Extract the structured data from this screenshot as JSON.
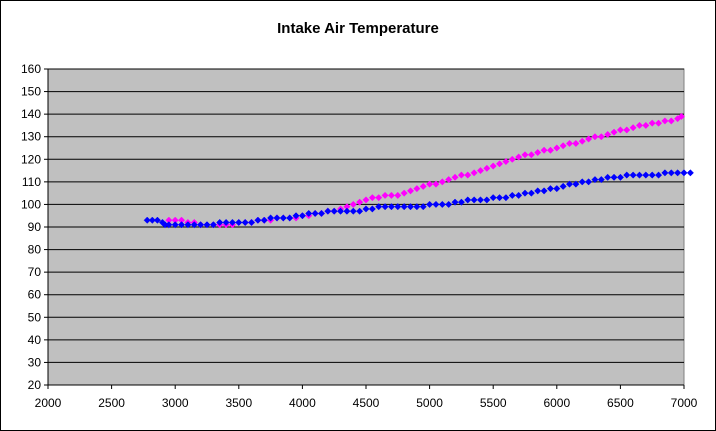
{
  "chart_data": {
    "type": "scatter",
    "title": "Intake Air Temperature",
    "xlabel": "",
    "ylabel": "",
    "xlim": [
      2000,
      7000
    ],
    "ylim": [
      20,
      160
    ],
    "x_ticks": [
      "2000",
      "2500",
      "3000",
      "3500",
      "4000",
      "4500",
      "5000",
      "5500",
      "6000",
      "6500",
      "7000"
    ],
    "y_ticks": [
      "20",
      "30",
      "40",
      "50",
      "60",
      "70",
      "80",
      "90",
      "100",
      "110",
      "120",
      "130",
      "140",
      "150",
      "160"
    ],
    "grid": "horizontal",
    "legend": "none",
    "plot_background": "#c0c0c0",
    "series": [
      {
        "color": "#ff00ff",
        "marker": "diamond",
        "points": [
          [
            2950,
            93
          ],
          [
            3000,
            93
          ],
          [
            3050,
            93
          ],
          [
            3100,
            92
          ],
          [
            3150,
            92
          ],
          [
            3200,
            91
          ],
          [
            3250,
            91
          ],
          [
            3300,
            91
          ],
          [
            3350,
            91
          ],
          [
            3400,
            91
          ],
          [
            3450,
            91
          ],
          [
            3500,
            92
          ],
          [
            3550,
            92
          ],
          [
            3600,
            92
          ],
          [
            3650,
            93
          ],
          [
            3700,
            93
          ],
          [
            3750,
            93
          ],
          [
            3800,
            94
          ],
          [
            3850,
            94
          ],
          [
            3900,
            94
          ],
          [
            3950,
            94
          ],
          [
            4000,
            95
          ],
          [
            4050,
            95
          ],
          [
            4100,
            96
          ],
          [
            4150,
            96
          ],
          [
            4200,
            97
          ],
          [
            4250,
            97
          ],
          [
            4300,
            98
          ],
          [
            4350,
            99
          ],
          [
            4400,
            100
          ],
          [
            4450,
            101
          ],
          [
            4500,
            102
          ],
          [
            4550,
            103
          ],
          [
            4600,
            103
          ],
          [
            4650,
            104
          ],
          [
            4700,
            104
          ],
          [
            4750,
            104
          ],
          [
            4800,
            105
          ],
          [
            4850,
            106
          ],
          [
            4900,
            107
          ],
          [
            4950,
            108
          ],
          [
            5000,
            109
          ],
          [
            5050,
            109
          ],
          [
            5100,
            110
          ],
          [
            5150,
            111
          ],
          [
            5200,
            112
          ],
          [
            5250,
            113
          ],
          [
            5300,
            113
          ],
          [
            5350,
            114
          ],
          [
            5400,
            115
          ],
          [
            5450,
            116
          ],
          [
            5500,
            117
          ],
          [
            5550,
            118
          ],
          [
            5600,
            119
          ],
          [
            5650,
            120
          ],
          [
            5700,
            121
          ],
          [
            5750,
            122
          ],
          [
            5800,
            122
          ],
          [
            5850,
            123
          ],
          [
            5900,
            124
          ],
          [
            5950,
            124
          ],
          [
            6000,
            125
          ],
          [
            6050,
            126
          ],
          [
            6100,
            127
          ],
          [
            6150,
            127
          ],
          [
            6200,
            128
          ],
          [
            6250,
            129
          ],
          [
            6300,
            130
          ],
          [
            6350,
            130
          ],
          [
            6400,
            131
          ],
          [
            6450,
            132
          ],
          [
            6500,
            133
          ],
          [
            6550,
            133
          ],
          [
            6600,
            134
          ],
          [
            6650,
            135
          ],
          [
            6700,
            135
          ],
          [
            6750,
            136
          ],
          [
            6800,
            136
          ],
          [
            6850,
            137
          ],
          [
            6900,
            137
          ],
          [
            6950,
            138
          ],
          [
            6980,
            139
          ]
        ]
      },
      {
        "color": "#0000ff",
        "marker": "diamond",
        "points": [
          [
            2780,
            93
          ],
          [
            2820,
            93
          ],
          [
            2860,
            93
          ],
          [
            2900,
            92
          ],
          [
            2920,
            91
          ],
          [
            2950,
            91
          ],
          [
            3000,
            91
          ],
          [
            3050,
            91
          ],
          [
            3100,
            91
          ],
          [
            3150,
            91
          ],
          [
            3200,
            91
          ],
          [
            3250,
            91
          ],
          [
            3300,
            91
          ],
          [
            3350,
            92
          ],
          [
            3400,
            92
          ],
          [
            3450,
            92
          ],
          [
            3500,
            92
          ],
          [
            3550,
            92
          ],
          [
            3600,
            92
          ],
          [
            3650,
            93
          ],
          [
            3700,
            93
          ],
          [
            3750,
            94
          ],
          [
            3800,
            94
          ],
          [
            3850,
            94
          ],
          [
            3900,
            94
          ],
          [
            3950,
            95
          ],
          [
            4000,
            95
          ],
          [
            4050,
            96
          ],
          [
            4100,
            96
          ],
          [
            4150,
            96
          ],
          [
            4200,
            97
          ],
          [
            4250,
            97
          ],
          [
            4300,
            97
          ],
          [
            4350,
            97
          ],
          [
            4400,
            97
          ],
          [
            4450,
            97
          ],
          [
            4500,
            98
          ],
          [
            4550,
            98
          ],
          [
            4600,
            99
          ],
          [
            4650,
            99
          ],
          [
            4700,
            99
          ],
          [
            4750,
            99
          ],
          [
            4800,
            99
          ],
          [
            4850,
            99
          ],
          [
            4900,
            99
          ],
          [
            4950,
            99
          ],
          [
            5000,
            100
          ],
          [
            5050,
            100
          ],
          [
            5100,
            100
          ],
          [
            5150,
            100
          ],
          [
            5200,
            101
          ],
          [
            5250,
            101
          ],
          [
            5300,
            102
          ],
          [
            5350,
            102
          ],
          [
            5400,
            102
          ],
          [
            5450,
            102
          ],
          [
            5500,
            103
          ],
          [
            5550,
            103
          ],
          [
            5600,
            103
          ],
          [
            5650,
            104
          ],
          [
            5700,
            104
          ],
          [
            5750,
            105
          ],
          [
            5800,
            105
          ],
          [
            5850,
            106
          ],
          [
            5900,
            106
          ],
          [
            5950,
            107
          ],
          [
            6000,
            107
          ],
          [
            6050,
            108
          ],
          [
            6100,
            109
          ],
          [
            6150,
            109
          ],
          [
            6200,
            110
          ],
          [
            6250,
            110
          ],
          [
            6300,
            111
          ],
          [
            6350,
            111
          ],
          [
            6400,
            112
          ],
          [
            6450,
            112
          ],
          [
            6500,
            112
          ],
          [
            6550,
            113
          ],
          [
            6600,
            113
          ],
          [
            6650,
            113
          ],
          [
            6700,
            113
          ],
          [
            6750,
            113
          ],
          [
            6800,
            113
          ],
          [
            6850,
            114
          ],
          [
            6900,
            114
          ],
          [
            6950,
            114
          ],
          [
            7000,
            114
          ],
          [
            7050,
            114
          ]
        ]
      }
    ]
  }
}
